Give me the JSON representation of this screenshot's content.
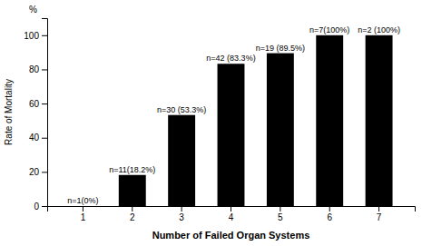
{
  "chart_data": {
    "type": "bar",
    "categories": [
      "1",
      "2",
      "3",
      "4",
      "5",
      "6",
      "7"
    ],
    "values": [
      0,
      18.2,
      53.3,
      83.3,
      89.5,
      100,
      100
    ],
    "value_labels": [
      "n=1(0%)",
      "n=11(18.2%)",
      "n=30 (53.3%)",
      "n=42 (83.3%)",
      "n=19 (89.5%)",
      "n=7(100%)",
      "n=2 (100%)"
    ],
    "data_labels": true,
    "color": "#000000",
    "xlabel": "Number of Failed Organ Systems",
    "ylabel": "Rate of Mortality",
    "annotations": [
      {
        "text": "%"
      }
    ],
    "ylim": [
      0,
      110
    ],
    "yticks": [
      0,
      20,
      40,
      60,
      80,
      100
    ],
    "grid": false
  }
}
